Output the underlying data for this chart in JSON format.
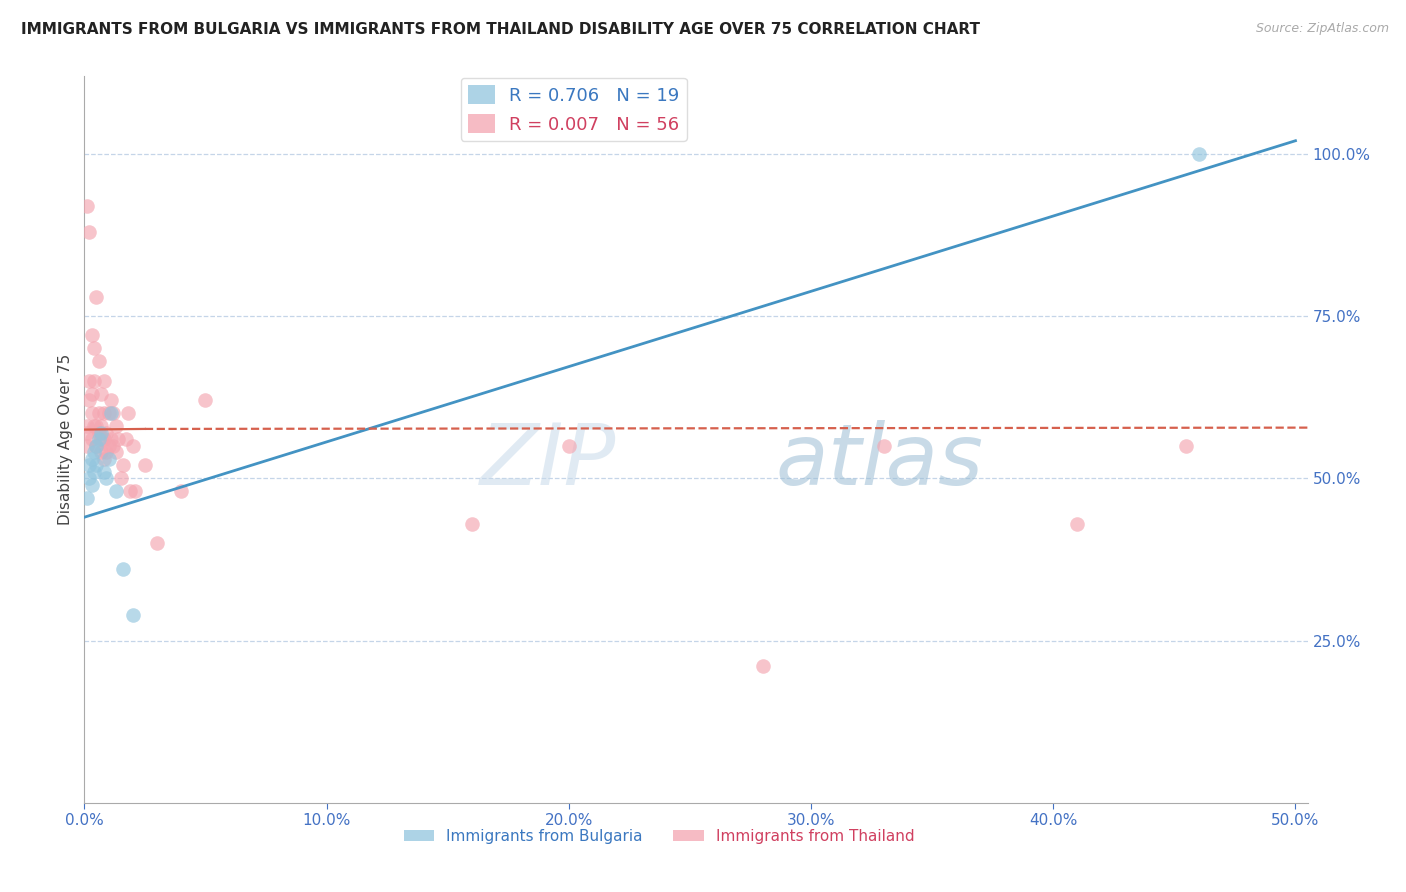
{
  "title": "IMMIGRANTS FROM BULGARIA VS IMMIGRANTS FROM THAILAND DISABILITY AGE OVER 75 CORRELATION CHART",
  "source": "Source: ZipAtlas.com",
  "ylabel": "Disability Age Over 75",
  "legend_bulgaria": "Immigrants from Bulgaria",
  "legend_thailand": "Immigrants from Thailand",
  "R_bulgaria": 0.706,
  "N_bulgaria": 19,
  "R_thailand": 0.007,
  "N_thailand": 56,
  "xlim": [
    0.0,
    0.505
  ],
  "ylim": [
    0.0,
    1.12
  ],
  "ytick_positions": [
    0.25,
    0.5,
    0.75,
    1.0
  ],
  "xtick_positions": [
    0.0,
    0.1,
    0.2,
    0.3,
    0.4,
    0.5
  ],
  "color_bulgaria": "#92c5de",
  "color_thailand": "#f4a5b0",
  "color_blue_line": "#4393c3",
  "color_pink_line": "#d6604d",
  "watermark_zip": "ZIP",
  "watermark_atlas": "atlas",
  "bulgaria_x": [
    0.001,
    0.002,
    0.002,
    0.003,
    0.003,
    0.004,
    0.004,
    0.005,
    0.005,
    0.006,
    0.007,
    0.008,
    0.009,
    0.01,
    0.011,
    0.013,
    0.016,
    0.02,
    0.46
  ],
  "bulgaria_y": [
    0.47,
    0.5,
    0.52,
    0.49,
    0.53,
    0.51,
    0.54,
    0.52,
    0.55,
    0.56,
    0.57,
    0.51,
    0.5,
    0.53,
    0.6,
    0.48,
    0.36,
    0.29,
    1.0
  ],
  "thailand_x": [
    0.001,
    0.001,
    0.001,
    0.001,
    0.002,
    0.002,
    0.002,
    0.003,
    0.003,
    0.003,
    0.003,
    0.004,
    0.004,
    0.004,
    0.005,
    0.005,
    0.005,
    0.006,
    0.006,
    0.006,
    0.007,
    0.007,
    0.007,
    0.007,
    0.008,
    0.008,
    0.008,
    0.008,
    0.009,
    0.009,
    0.01,
    0.01,
    0.011,
    0.011,
    0.012,
    0.012,
    0.013,
    0.013,
    0.014,
    0.015,
    0.016,
    0.017,
    0.018,
    0.019,
    0.02,
    0.021,
    0.025,
    0.03,
    0.04,
    0.05,
    0.16,
    0.2,
    0.28,
    0.33,
    0.41,
    0.455
  ],
  "thailand_y": [
    0.55,
    0.57,
    0.58,
    0.92,
    0.62,
    0.65,
    0.88,
    0.56,
    0.6,
    0.63,
    0.72,
    0.58,
    0.65,
    0.7,
    0.55,
    0.58,
    0.78,
    0.57,
    0.6,
    0.68,
    0.54,
    0.56,
    0.58,
    0.63,
    0.53,
    0.56,
    0.6,
    0.65,
    0.54,
    0.57,
    0.55,
    0.6,
    0.56,
    0.62,
    0.55,
    0.6,
    0.54,
    0.58,
    0.56,
    0.5,
    0.52,
    0.56,
    0.6,
    0.48,
    0.55,
    0.48,
    0.52,
    0.4,
    0.48,
    0.62,
    0.43,
    0.55,
    0.21,
    0.55,
    0.43,
    0.55
  ],
  "blue_line_x": [
    0.0,
    0.5
  ],
  "blue_line_y": [
    0.44,
    1.02
  ],
  "pink_line_x": [
    0.0,
    0.505
  ],
  "pink_line_y": [
    0.575,
    0.578
  ]
}
